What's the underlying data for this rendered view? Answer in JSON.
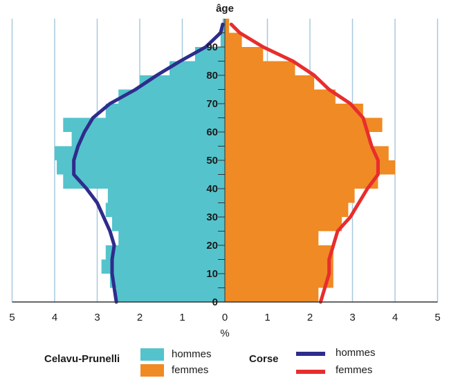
{
  "chart_data": {
    "type": "bar",
    "subtype": "population-pyramid",
    "y_axis_label": "âge",
    "x_axis_label": "%",
    "x_ticks": [
      5,
      4,
      3,
      2,
      1,
      0,
      1,
      2,
      3,
      4,
      5
    ],
    "y_ticks": [
      0,
      10,
      20,
      30,
      40,
      50,
      60,
      70,
      80,
      90
    ],
    "xlim": [
      -5,
      5
    ],
    "ylim": [
      0,
      100
    ],
    "bin_width_years": 5,
    "grid": "vertical",
    "bars": {
      "area": "Celavu-Prunelli",
      "age_bins": [
        0,
        5,
        10,
        15,
        20,
        25,
        30,
        35,
        40,
        45,
        50,
        55,
        60,
        65,
        70,
        75,
        80,
        85,
        90,
        95
      ],
      "hommes": [
        2.55,
        2.7,
        2.9,
        2.8,
        2.5,
        2.65,
        2.8,
        2.75,
        3.8,
        3.95,
        4.0,
        3.6,
        3.8,
        2.8,
        2.5,
        2.0,
        1.3,
        0.7,
        0.1,
        0.05
      ],
      "femmes": [
        2.2,
        2.55,
        2.55,
        2.55,
        2.2,
        2.75,
        2.9,
        3.05,
        3.6,
        4.0,
        3.85,
        3.4,
        3.7,
        3.25,
        2.6,
        2.1,
        1.65,
        0.9,
        0.4,
        0.1
      ]
    },
    "lines": {
      "area": "Corse",
      "age": [
        0,
        5,
        10,
        15,
        20,
        25,
        30,
        35,
        40,
        45,
        50,
        55,
        60,
        65,
        70,
        75,
        80,
        85,
        90,
        95,
        98
      ],
      "hommes": [
        2.55,
        2.6,
        2.65,
        2.65,
        2.6,
        2.7,
        2.85,
        3.0,
        3.25,
        3.55,
        3.55,
        3.45,
        3.3,
        3.1,
        2.7,
        2.1,
        1.6,
        1.05,
        0.45,
        0.1,
        0.05
      ],
      "femmes": [
        2.25,
        2.35,
        2.45,
        2.45,
        2.55,
        2.65,
        2.95,
        3.15,
        3.35,
        3.6,
        3.6,
        3.45,
        3.35,
        3.25,
        2.95,
        2.45,
        2.1,
        1.6,
        0.9,
        0.35,
        0.15
      ]
    },
    "legend": {
      "group1": "Celavu-Prunelli",
      "group2": "Corse",
      "bar_hommes": "hommes",
      "bar_femmes": "femmes",
      "line_hommes": "hommes",
      "line_femmes": "femmes"
    },
    "colors": {
      "bar_hommes": "#54c3cc",
      "bar_femmes": "#f08a24",
      "line_hommes": "#2e2c8c",
      "line_femmes": "#e82d2d",
      "grid": "#a8c8de",
      "axis": "#333333"
    }
  }
}
